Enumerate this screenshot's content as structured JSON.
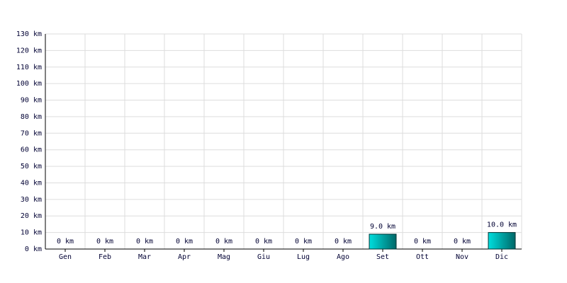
{
  "chart_data": {
    "type": "bar",
    "categories": [
      "Gen",
      "Feb",
      "Mar",
      "Apr",
      "Mag",
      "Giu",
      "Lug",
      "Ago",
      "Set",
      "Ott",
      "Nov",
      "Dic"
    ],
    "values": [
      0,
      0,
      0,
      0,
      0,
      0,
      0,
      0,
      9,
      0,
      0,
      10
    ],
    "value_labels": [
      "0 km",
      "0 km",
      "0 km",
      "0 km",
      "0 km",
      "0 km",
      "0 km",
      "0 km",
      "9.0 km",
      "0 km",
      "0 km",
      "10.0 km"
    ],
    "color": "#00dede",
    "ylim": [
      0,
      130
    ],
    "yticks": [
      {
        "value": 0,
        "label": "0 km"
      },
      {
        "value": 10,
        "label": "10 km"
      },
      {
        "value": 20,
        "label": "20 km"
      },
      {
        "value": 30,
        "label": "30 km"
      },
      {
        "value": 40,
        "label": "40 km"
      },
      {
        "value": 50,
        "label": "50 km"
      },
      {
        "value": 60,
        "label": "60 km"
      },
      {
        "value": 70,
        "label": "70 km"
      },
      {
        "value": 80,
        "label": "80 km"
      },
      {
        "value": 90,
        "label": "90 km"
      },
      {
        "value": 100,
        "label": "100 km"
      },
      {
        "value": 110,
        "label": "110 km"
      },
      {
        "value": 120,
        "label": "120 km"
      },
      {
        "value": 130,
        "label": "130 km"
      }
    ],
    "grid": true
  }
}
